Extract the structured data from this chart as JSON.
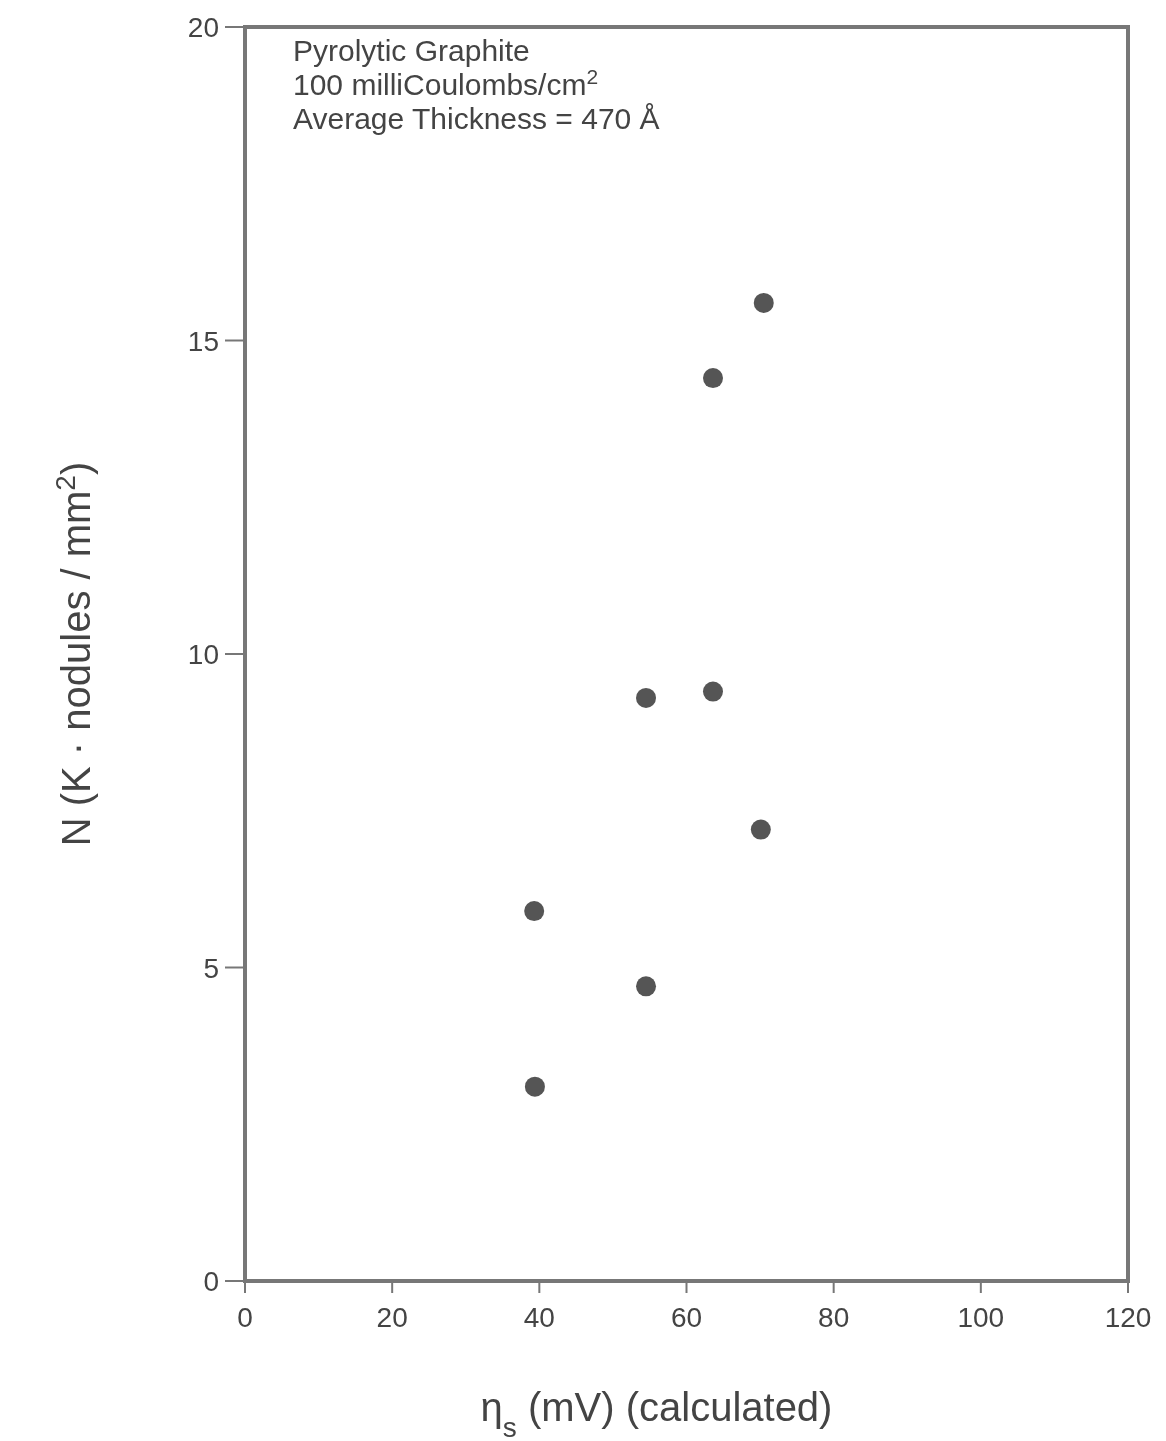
{
  "chart_data": {
    "type": "scatter",
    "xlabel": "η$_{s}$ (mV) (calculated)",
    "ylabel": "N (K · nodules / mm$^{2}$)",
    "annotations": [
      "Pyrolytic Graphite",
      "100 milliCoulombs/cm$^{2}$",
      "Average Thickness = 470 Å"
    ],
    "x": [
      39.3,
      39.4,
      54.5,
      54.5,
      63.6,
      63.6,
      70.1,
      70.5
    ],
    "series": [
      {
        "color": "#555555",
        "values": [
          5.9,
          3.1,
          4.7,
          9.3,
          9.4,
          14.4,
          7.2,
          15.6
        ]
      }
    ],
    "xlim": [
      0,
      120
    ],
    "xticks": [
      0,
      20,
      40,
      60,
      80,
      100,
      120
    ],
    "ylim": [
      0,
      20
    ],
    "yticks": [
      0,
      5,
      10,
      15,
      20
    ],
    "grid": false,
    "marker": "circle"
  }
}
